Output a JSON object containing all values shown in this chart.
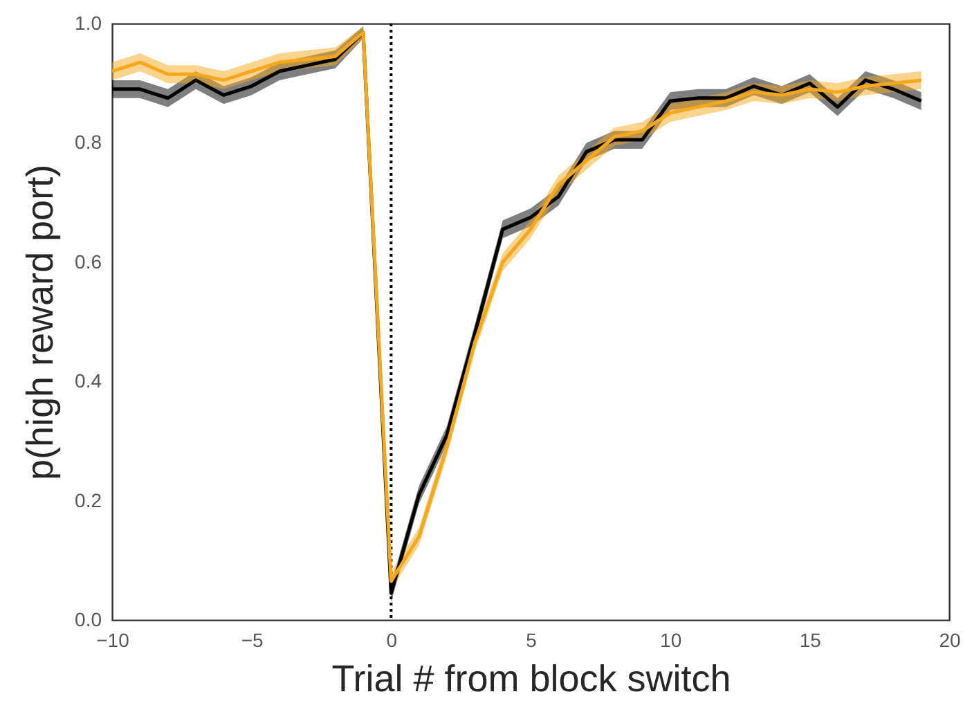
{
  "chart_data": {
    "type": "line",
    "xlabel": "Trial # from block switch",
    "ylabel": "p(high reward port)",
    "x": [
      -10,
      -9,
      -8,
      -7,
      -6,
      -5,
      -4,
      -3,
      -2,
      -1,
      0,
      1,
      2,
      3,
      4,
      5,
      6,
      7,
      8,
      9,
      10,
      11,
      12,
      13,
      14,
      15,
      16,
      17,
      18,
      19
    ],
    "series": [
      {
        "color": "#000000",
        "values": [
          0.89,
          0.89,
          0.875,
          0.905,
          0.88,
          0.895,
          0.92,
          0.93,
          0.94,
          0.985,
          0.045,
          0.21,
          0.31,
          0.48,
          0.655,
          0.675,
          0.71,
          0.785,
          0.805,
          0.805,
          0.87,
          0.875,
          0.875,
          0.895,
          0.88,
          0.9,
          0.86,
          0.905,
          0.89,
          0.87
        ],
        "lower": [
          0.875,
          0.875,
          0.86,
          0.89,
          0.865,
          0.88,
          0.905,
          0.915,
          0.925,
          0.975,
          0.03,
          0.195,
          0.295,
          0.465,
          0.64,
          0.66,
          0.695,
          0.77,
          0.79,
          0.79,
          0.855,
          0.86,
          0.86,
          0.88,
          0.865,
          0.885,
          0.845,
          0.89,
          0.875,
          0.855
        ],
        "upper": [
          0.905,
          0.905,
          0.89,
          0.92,
          0.895,
          0.91,
          0.935,
          0.945,
          0.955,
          0.995,
          0.06,
          0.225,
          0.325,
          0.495,
          0.67,
          0.69,
          0.725,
          0.8,
          0.82,
          0.82,
          0.885,
          0.89,
          0.89,
          0.91,
          0.895,
          0.915,
          0.875,
          0.92,
          0.905,
          0.885
        ]
      },
      {
        "color": "#f5a81c",
        "values": [
          0.92,
          0.935,
          0.915,
          0.915,
          0.905,
          0.92,
          0.935,
          0.94,
          0.945,
          0.985,
          0.065,
          0.14,
          0.29,
          0.465,
          0.6,
          0.655,
          0.73,
          0.77,
          0.81,
          0.82,
          0.85,
          0.86,
          0.87,
          0.885,
          0.88,
          0.89,
          0.885,
          0.895,
          0.9,
          0.905
        ],
        "lower": [
          0.905,
          0.92,
          0.9,
          0.9,
          0.89,
          0.905,
          0.92,
          0.925,
          0.93,
          0.975,
          0.05,
          0.125,
          0.275,
          0.45,
          0.585,
          0.64,
          0.715,
          0.755,
          0.795,
          0.805,
          0.835,
          0.845,
          0.855,
          0.87,
          0.865,
          0.875,
          0.87,
          0.88,
          0.885,
          0.89
        ],
        "upper": [
          0.935,
          0.95,
          0.93,
          0.93,
          0.92,
          0.935,
          0.95,
          0.955,
          0.96,
          0.995,
          0.08,
          0.155,
          0.305,
          0.48,
          0.615,
          0.67,
          0.745,
          0.785,
          0.825,
          0.835,
          0.865,
          0.875,
          0.885,
          0.9,
          0.895,
          0.905,
          0.9,
          0.91,
          0.915,
          0.92
        ]
      }
    ],
    "xlim": [
      -10,
      20
    ],
    "ylim": [
      0,
      1
    ],
    "xticks": [
      {
        "value": -10,
        "label": "−10"
      },
      {
        "value": -5,
        "label": "−5"
      },
      0,
      5,
      10,
      15,
      20
    ],
    "yticks": [
      {
        "value": 0,
        "label": "0.0"
      },
      0.2,
      0.4,
      0.6,
      0.8,
      {
        "value": 1,
        "label": "1.0"
      }
    ],
    "ref_lines": [
      {
        "axis": "x",
        "value": 0,
        "color": "#000000",
        "line_style": "dotted"
      }
    ],
    "grid": false
  }
}
